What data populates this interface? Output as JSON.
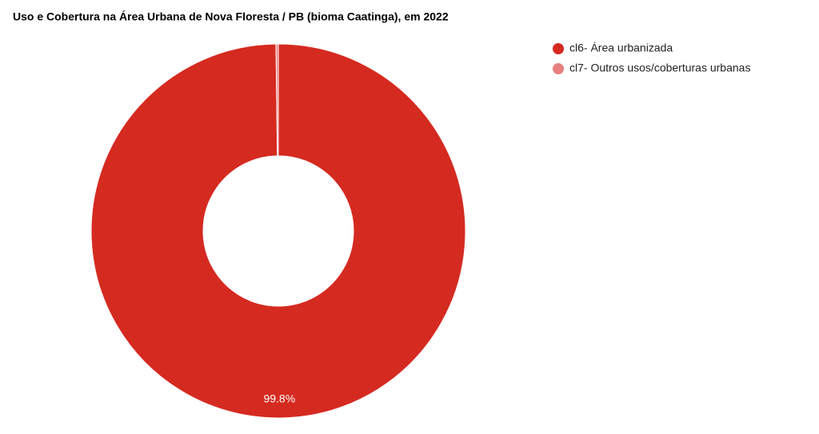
{
  "chart_data": {
    "type": "donut",
    "title": "Uso e Cobertura na Área Urbana de Nova Floresta / PB (bioma Caatinga), em 2022",
    "categories": [
      "cl6- Área urbanizada",
      "cl7- Outros usos/coberturas urbanas"
    ],
    "values": [
      99.8,
      0.2
    ],
    "value_labels": [
      "99.8%",
      null
    ],
    "colors": [
      "#d52a20",
      "#e88080"
    ],
    "legend": "right"
  }
}
